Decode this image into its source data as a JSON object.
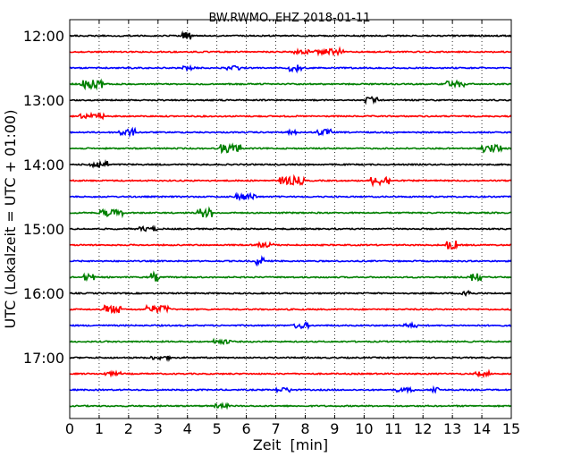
{
  "chart_data": {
    "type": "line",
    "title": "BW.RWMO..EHZ 2018-01-11",
    "xlabel": "Zeit  [min]",
    "ylabel": "UTC (Lokalzeit = UTC + 01:00)",
    "xlim": [
      0,
      15
    ],
    "x_ticks": [
      "0",
      "1",
      "2",
      "3",
      "4",
      "5",
      "6",
      "7",
      "8",
      "9",
      "10",
      "11",
      "12",
      "13",
      "14",
      "15"
    ],
    "y_ticks": [
      "12:00",
      "13:00",
      "14:00",
      "15:00",
      "16:00",
      "17:00"
    ],
    "grid": "vertical dotted at each minute",
    "trace_colors": [
      "#000000",
      "#ff0000",
      "#0000ff",
      "#008000"
    ],
    "traces_per_hour": 4,
    "trace_count": 24,
    "first_trace": "12:00",
    "trace_interval_min": 15
  }
}
